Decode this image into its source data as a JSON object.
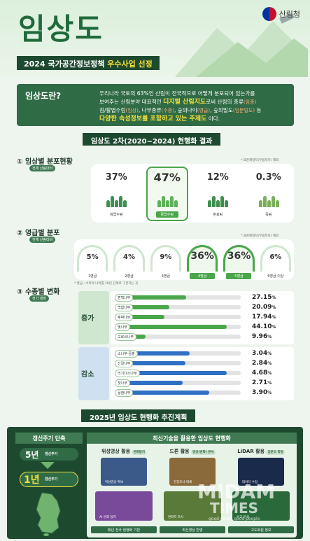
{
  "header": {
    "title": "임상도",
    "agency": "산림청",
    "banner_prefix": "2024 국가공간정보정책 ",
    "banner_highlight": "우수사업 선정"
  },
  "definition": {
    "label": "임상도란?",
    "text1": "우리나라 국토의 63%인 산림이 전국적으로 어떻게 분포되어 있는가를",
    "text2a": "보여주는 산림분야 대표적인 ",
    "highlight1": "디지털 산림지도",
    "text2b": "로써 산림의 종류",
    "tag1": "(임종)",
    "text3a": "침/활엽수림",
    "tag2": "(임상)",
    "text3b": ", 나무종류",
    "tag3": "(수종)",
    "text3c": ", 숲의나이",
    "tag4": "(영급)",
    "text3d": ", 숲의밀도",
    "tag5": "(임분밀도)",
    "text3e": " 등",
    "highlight2": "다양한 속성정보를 포함하고 있는 주제도",
    "text4": " 이다."
  },
  "results": {
    "title": "임상도 2차(2020~2024) 현행화 결과",
    "section1": {
      "num": "①",
      "title": "임상별 분포현황",
      "sub": "전체 산림대비",
      "note": "* 표준제정지(무립목지) 제외",
      "items": [
        {
          "pct": "37%",
          "label": "침엽수림"
        },
        {
          "pct": "47%",
          "label": "활엽수림"
        },
        {
          "pct": "12%",
          "label": "혼효림"
        },
        {
          "pct": "0.3%",
          "label": "죽림"
        }
      ]
    },
    "section2": {
      "num": "②",
      "title": "영급별 분포",
      "sub": "전체 산림대비",
      "note": "* 표준제정지(무립목지) 제외",
      "footnote": "* 영급 : 수목의 나이를 10년 단위로 구분하는 것",
      "items": [
        {
          "pct": "5%",
          "label": "1영급"
        },
        {
          "pct": "4%",
          "label": "2영급"
        },
        {
          "pct": "9%",
          "label": "3영급"
        },
        {
          "pct": "36%",
          "label": "4영급"
        },
        {
          "pct": "36%",
          "label": "5영급"
        },
        {
          "pct": "6%",
          "label": "6영급 이상"
        }
      ]
    },
    "section3": {
      "num": "③",
      "title": "수종별 변화",
      "sub": "전기 대비",
      "increase_label": "증가",
      "decrease_label": "감소",
      "increase": [
        {
          "name": "편백나무",
          "value": 27.15,
          "display": "27.15",
          "unit": "%"
        },
        {
          "name": "백합나무",
          "value": 20.09,
          "display": "20.09",
          "unit": "%"
        },
        {
          "name": "후박나무",
          "value": 17.94,
          "display": "17.94",
          "unit": "%"
        },
        {
          "name": "벚나무",
          "value": 44.1,
          "display": "44.10",
          "unit": "%"
        },
        {
          "name": "고로쇠나무",
          "value": 9.96,
          "display": "9.96",
          "unit": "%"
        }
      ],
      "decrease": [
        {
          "name": "소나무·곰솔",
          "value": 3.04,
          "display": "3.04",
          "unit": "%"
        },
        {
          "name": "신갈나무",
          "value": 2.84,
          "display": "2.84",
          "unit": "%"
        },
        {
          "name": "리기다소나무",
          "value": 4.68,
          "display": "4.68",
          "unit": "%"
        },
        {
          "name": "잣나무",
          "value": 2.71,
          "display": "2.71",
          "unit": "%"
        },
        {
          "name": "굴참나무",
          "value": 3.9,
          "display": "3.90",
          "unit": "%"
        }
      ]
    }
  },
  "plan": {
    "title": "2025년 임상도 현행화 추진계획",
    "cycle_title": "갱신주기 단축",
    "from_value": "5년",
    "from_label": "갱신주기",
    "to_value": "1년",
    "to_label": "갱신주기",
    "right_title": "최신기술을 활용한 임상도 현행화",
    "columns": [
      {
        "head": "위성영상 활용",
        "tag": "변화탐지",
        "img1": "위성영상 확보",
        "img2": "AI 변화 탐지",
        "foot": "매년 전국 현행화 기반"
      },
      {
        "head": "드론 활용",
        "tag": "영상(변화) 분석",
        "img1": "현장조사 대체",
        "img2": "변화지 조사",
        "foot": "최신영상 반영"
      },
      {
        "head": "LiDAR 활용",
        "tag": "임분고 측정",
        "img1": "데이터 수집",
        "img2": "수고 분석",
        "foot": "고도화된 정보"
      }
    ]
  },
  "watermark": {
    "brand": "MIDAM",
    "brand2": "TIMES",
    "tagline": "good news, good people"
  },
  "colors": {
    "dark_green": "#1d4a2f",
    "mid_green": "#2f6b45",
    "accent_yellow": "#f5e03b",
    "bar_green": "#4aa64a",
    "bar_blue": "#2f6fc4"
  }
}
